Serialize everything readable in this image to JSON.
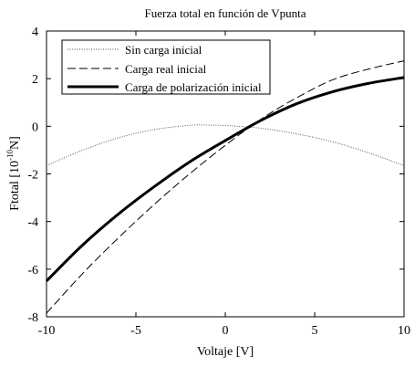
{
  "chart_data": {
    "type": "line",
    "title": "Fuerza total en función de Vpunta",
    "xlabel": "Voltaje [V]",
    "ylabel_main": "Ftotal [10",
    "ylabel_sup": "-10",
    "ylabel_end": "N]",
    "xlim": [
      -10,
      10
    ],
    "ylim": [
      -8,
      4
    ],
    "x_ticks": [
      -10,
      -5,
      0,
      5,
      10
    ],
    "y_ticks": [
      -8,
      -6,
      -4,
      -2,
      0,
      2,
      4
    ],
    "x_tick_labels": [
      "-10",
      "-5",
      "0",
      "5",
      "10"
    ],
    "y_tick_labels": [
      "-8",
      "-6",
      "-4",
      "-2",
      "0",
      "2",
      "4"
    ],
    "grid": false,
    "legend_position": "top-left",
    "series": [
      {
        "name": "Sin carga inicial",
        "style": "dotted",
        "x": [
          -10,
          -8,
          -6,
          -4,
          -2,
          -1,
          0,
          2,
          4,
          6,
          8,
          10
        ],
        "y": [
          -1.65,
          -1.01,
          -0.49,
          -0.14,
          0.04,
          0.05,
          0.03,
          -0.08,
          -0.32,
          -0.65,
          -1.11,
          -1.65
        ]
      },
      {
        "name": "Carga real inicial",
        "style": "dashed",
        "x": [
          -10,
          -8,
          -6,
          -4,
          -2,
          0,
          2,
          4,
          6,
          8,
          10
        ],
        "y": [
          -7.85,
          -6.2,
          -4.7,
          -3.3,
          -2.0,
          -0.8,
          0.3,
          1.2,
          1.95,
          2.4,
          2.75
        ]
      },
      {
        "name": "Carga de polarización inicial",
        "style": "thick",
        "x": [
          -10,
          -8,
          -6,
          -4,
          -2,
          0,
          2,
          4,
          6,
          8,
          10
        ],
        "y": [
          -6.5,
          -5.0,
          -3.7,
          -2.55,
          -1.5,
          -0.6,
          0.25,
          0.95,
          1.45,
          1.8,
          2.05
        ]
      }
    ]
  }
}
